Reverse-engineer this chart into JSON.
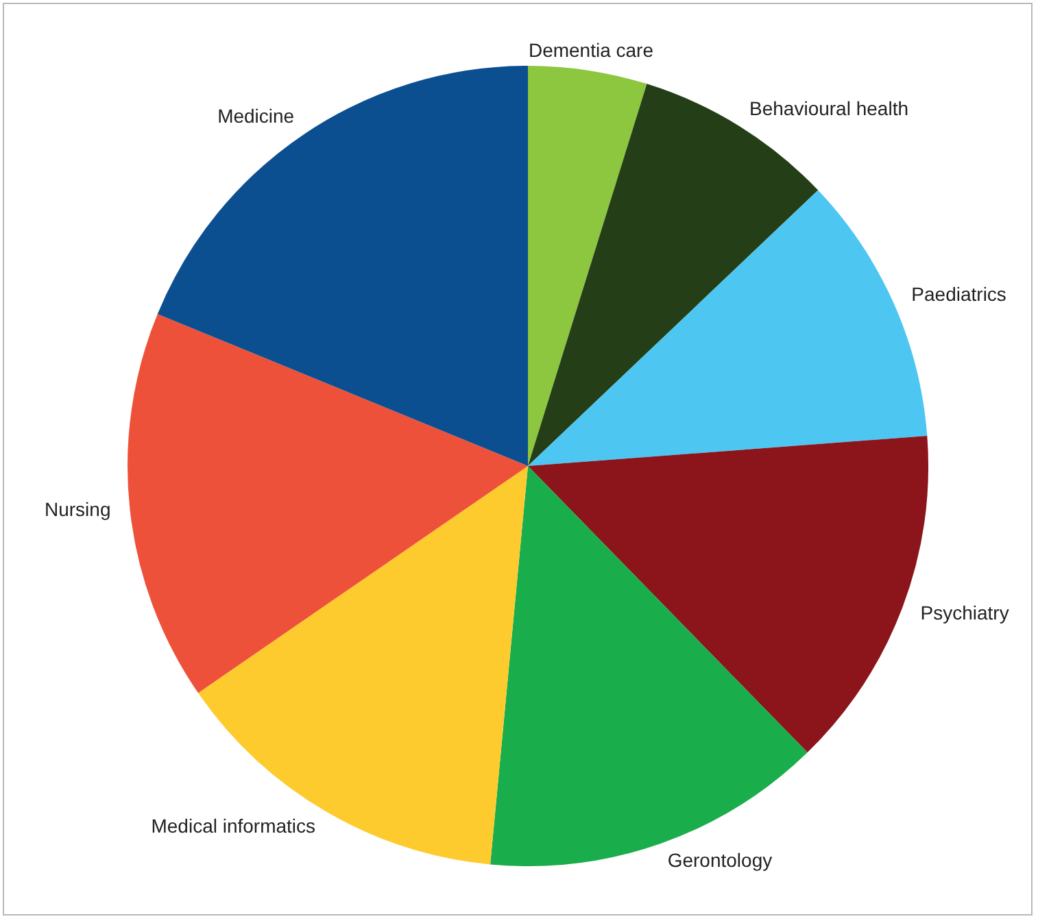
{
  "chart_data": {
    "type": "pie",
    "categories": [
      "Dementia care",
      "Behavioural health",
      "Paediatrics",
      "Psychiatry",
      "Gerontology",
      "Medical informatics",
      "Nursing",
      "Medicine"
    ],
    "values": [
      4.8,
      8.1,
      10.9,
      13.9,
      13.8,
      13.9,
      15.8,
      18.8
    ],
    "colors": [
      "#8dc63f",
      "#243f17",
      "#4dc6f2",
      "#8b151b",
      "#1aad4b",
      "#fecb2f",
      "#ee513a",
      "#0b4f91"
    ],
    "legend": false
  }
}
